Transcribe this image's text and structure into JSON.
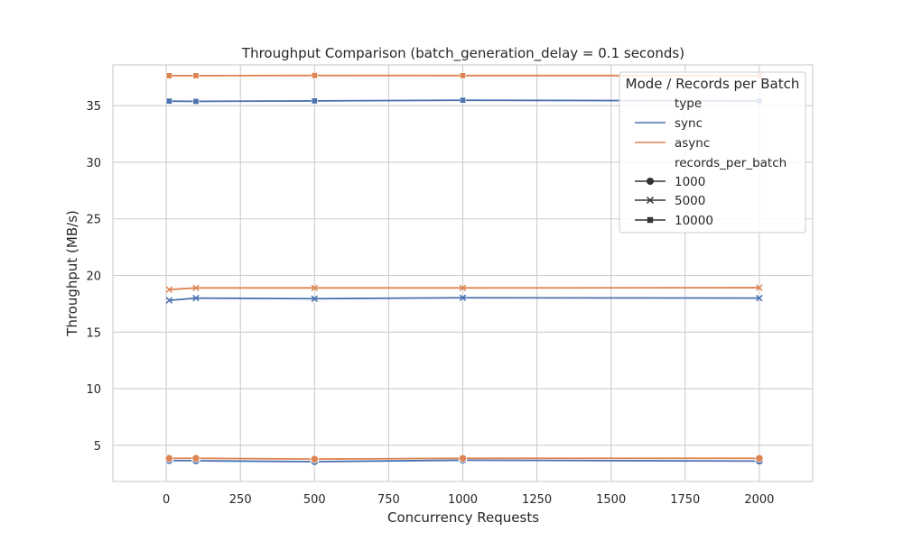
{
  "chart_data": {
    "type": "line",
    "title": "Throughput Comparison (batch_generation_delay = 0.1 seconds)",
    "xlabel": "Concurrency Requests",
    "ylabel": "Throughput (MB/s)",
    "xlim": [
      -180,
      2180
    ],
    "ylim": [
      1.8,
      38.6
    ],
    "xticks": [
      0,
      250,
      500,
      750,
      1000,
      1250,
      1500,
      1750,
      2000
    ],
    "yticks": [
      5,
      10,
      15,
      20,
      25,
      30,
      35
    ],
    "grid": true,
    "legend": {
      "title": "Mode / Records per Batch",
      "placement": "top-right",
      "type_heading": "type",
      "records_heading": "records_per_batch",
      "type_entries": [
        {
          "label": "sync",
          "color": "#4c72b0"
        },
        {
          "label": "async",
          "color": "#dd8452"
        }
      ],
      "records_entries": [
        {
          "label": "1000",
          "marker": "circle"
        },
        {
          "label": "5000",
          "marker": "x"
        },
        {
          "label": "10000",
          "marker": "square"
        }
      ]
    },
    "x": [
      10,
      100,
      500,
      1000,
      2000
    ],
    "series": [
      {
        "type": "sync",
        "records_per_batch": "1000",
        "color": "#4c72b0",
        "marker": "circle",
        "values": [
          3.65,
          3.63,
          3.55,
          3.68,
          3.6
        ]
      },
      {
        "type": "async",
        "records_per_batch": "1000",
        "color": "#dd8452",
        "marker": "circle",
        "values": [
          3.85,
          3.85,
          3.78,
          3.85,
          3.85
        ]
      },
      {
        "type": "sync",
        "records_per_batch": "5000",
        "color": "#4c72b0",
        "marker": "x",
        "values": [
          17.8,
          18.0,
          17.95,
          18.03,
          18.0
        ]
      },
      {
        "type": "async",
        "records_per_batch": "5000",
        "color": "#dd8452",
        "marker": "x",
        "values": [
          18.75,
          18.9,
          18.9,
          18.9,
          18.92
        ]
      },
      {
        "type": "sync",
        "records_per_batch": "10000",
        "color": "#4c72b0",
        "marker": "square",
        "values": [
          35.4,
          35.38,
          35.42,
          35.48,
          35.42
        ]
      },
      {
        "type": "async",
        "records_per_batch": "10000",
        "color": "#dd8452",
        "marker": "square",
        "values": [
          37.65,
          37.65,
          37.67,
          37.66,
          37.66
        ]
      }
    ]
  }
}
